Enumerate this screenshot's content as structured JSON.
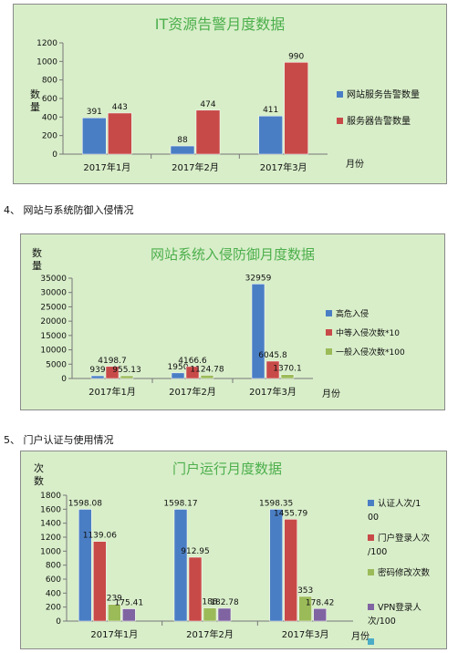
{
  "section_headings": {
    "s4": "4、 网站与系统防御入侵情况",
    "s5": "5、 门户认证与使用情况"
  },
  "colors": {
    "background": "#d8eec9",
    "blue": "#4a7ec4",
    "red": "#c84a48",
    "green": "#9bbb59",
    "purple": "#8064a2",
    "teal": "#4bacc6",
    "title": "#4caf4c"
  },
  "chart_data": [
    {
      "type": "bar",
      "title": "IT资源告警月度数据",
      "ylabel": "数\n量",
      "xlabel": "月份",
      "categories": [
        "2017年1月",
        "2017年2月",
        "2017年3月"
      ],
      "ylim": [
        0,
        1200
      ],
      "yticks": [
        0,
        200,
        400,
        600,
        800,
        1000,
        1200
      ],
      "legend_position": "right",
      "grid": false,
      "series": [
        {
          "name": "网站服务告警数量",
          "values": [
            391,
            88,
            411
          ],
          "labels": [
            "391",
            "88",
            "411"
          ]
        },
        {
          "name": "服务器告警数量",
          "values": [
            443,
            474,
            990
          ],
          "labels": [
            "443",
            "474",
            "990"
          ]
        }
      ]
    },
    {
      "type": "bar",
      "title": "网站系统入侵防御月度数据",
      "ylabel": "数\n量",
      "xlabel": "月份",
      "categories": [
        "2017年1月",
        "2017年2月",
        "2017年3月"
      ],
      "ylim": [
        0,
        35000
      ],
      "yticks": [
        0,
        5000,
        10000,
        15000,
        20000,
        25000,
        30000,
        35000
      ],
      "legend_position": "right",
      "grid": false,
      "series": [
        {
          "name": "高危入侵",
          "values": [
            939,
            1950,
            32959
          ],
          "labels": [
            "939",
            "1950",
            "32959"
          ]
        },
        {
          "name": "中等入侵次数*10",
          "values": [
            4198.7,
            4166.6,
            6045.8
          ],
          "labels": [
            "4198.7",
            "4166.6",
            "6045.8"
          ]
        },
        {
          "name": "一般入侵次数*100",
          "values": [
            955.13,
            1124.78,
            1370.1
          ],
          "labels": [
            "955.13",
            "1124.78",
            "1370.1"
          ]
        }
      ]
    },
    {
      "type": "bar",
      "title": "门户运行月度数据",
      "ylabel": "次\n数",
      "xlabel": "月份",
      "categories": [
        "2017年1月",
        "2017年2月",
        "2017年3月"
      ],
      "ylim": [
        0,
        1800
      ],
      "yticks": [
        0,
        200,
        400,
        600,
        800,
        1000,
        1200,
        1400,
        1600,
        1800
      ],
      "legend_position": "right",
      "grid": false,
      "series": [
        {
          "name": "认证人次/100",
          "values": [
            1598.08,
            1598.17,
            1598.35
          ],
          "labels": [
            "1598.08",
            "1598.17",
            "1598.35"
          ]
        },
        {
          "name": "门户登录人次/100",
          "values": [
            1139.06,
            912.95,
            1455.79
          ],
          "labels": [
            "1139.06",
            "912.95",
            "1455.79"
          ]
        },
        {
          "name": "密码修改次数",
          "values": [
            239,
            188,
            353
          ],
          "labels": [
            "239",
            "188",
            "353"
          ]
        },
        {
          "name": "VPN登录人次/100",
          "values": [
            175.41,
            182.78,
            178.42
          ],
          "labels": [
            "175.41",
            "182.78",
            "178.42"
          ]
        },
        {
          "name": "",
          "values": [
            0,
            0,
            0
          ],
          "labels": [
            "",
            "",
            ""
          ]
        }
      ]
    }
  ]
}
